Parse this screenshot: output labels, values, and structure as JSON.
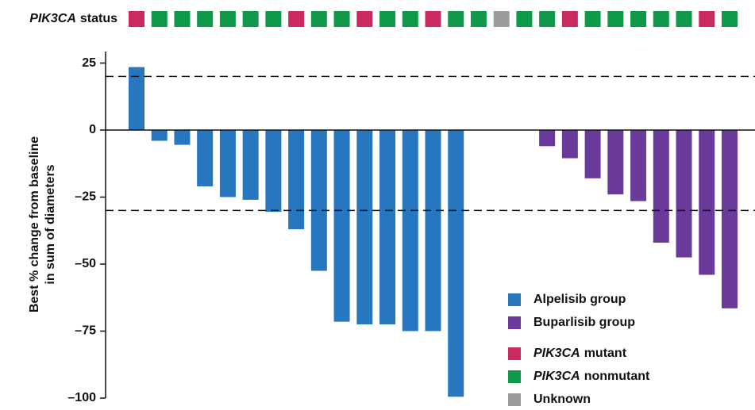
{
  "chart_data": {
    "type": "bar",
    "y_label": [
      "Best % change from baseline",
      "in sum of diameters"
    ],
    "status_title": [
      "PIK3CA",
      "status"
    ],
    "categories": [
      null,
      null,
      null,
      null,
      null,
      null,
      null,
      null,
      null,
      null,
      null,
      null,
      null,
      null,
      null,
      null,
      null,
      null,
      null,
      null,
      null,
      null,
      null,
      null,
      null,
      null,
      null
    ],
    "series": [
      {
        "name": "Alpelisib group",
        "color": "#2776c0",
        "values": [
          23.5,
          -4,
          -5.5,
          -21,
          -25,
          -26,
          -30.5,
          -37,
          -52.5,
          -71.5,
          -72.5,
          -72.5,
          -75,
          -75,
          -99.5,
          null,
          null,
          null,
          null,
          null,
          null,
          null,
          null,
          null,
          null,
          null,
          null
        ]
      },
      {
        "name": "Buparlisib group",
        "color": "#6a3a9b",
        "values": [
          null,
          null,
          null,
          null,
          null,
          null,
          null,
          null,
          null,
          null,
          null,
          null,
          null,
          null,
          null,
          null,
          null,
          null,
          -6,
          -10.5,
          -18,
          -24,
          -26.5,
          -42,
          -47.5,
          -54,
          -66.5
        ]
      }
    ],
    "status_categories": [
      {
        "name": [
          "PIK3CA",
          "mutant"
        ],
        "color": "#cc2a5e"
      },
      {
        "name": [
          "PIK3CA",
          "nonmutant"
        ],
        "color": "#0f9a4a"
      },
      {
        "name": [
          "Unknown"
        ],
        "color": "#9c9c9e"
      }
    ],
    "status": [
      0,
      1,
      1,
      1,
      1,
      1,
      1,
      0,
      1,
      1,
      0,
      1,
      1,
      0,
      1,
      1,
      2,
      1,
      1,
      0,
      1,
      1,
      1,
      1,
      1,
      0,
      1
    ],
    "reference_lines": [
      20,
      -30
    ],
    "ylim": [
      -100,
      29.3
    ],
    "yticks": [
      25,
      0,
      {
        "value": -25,
        "label": "–25"
      },
      {
        "value": -50,
        "label": "–50"
      },
      {
        "value": -75,
        "label": "–75"
      },
      {
        "value": -100,
        "label": "–100"
      }
    ]
  }
}
